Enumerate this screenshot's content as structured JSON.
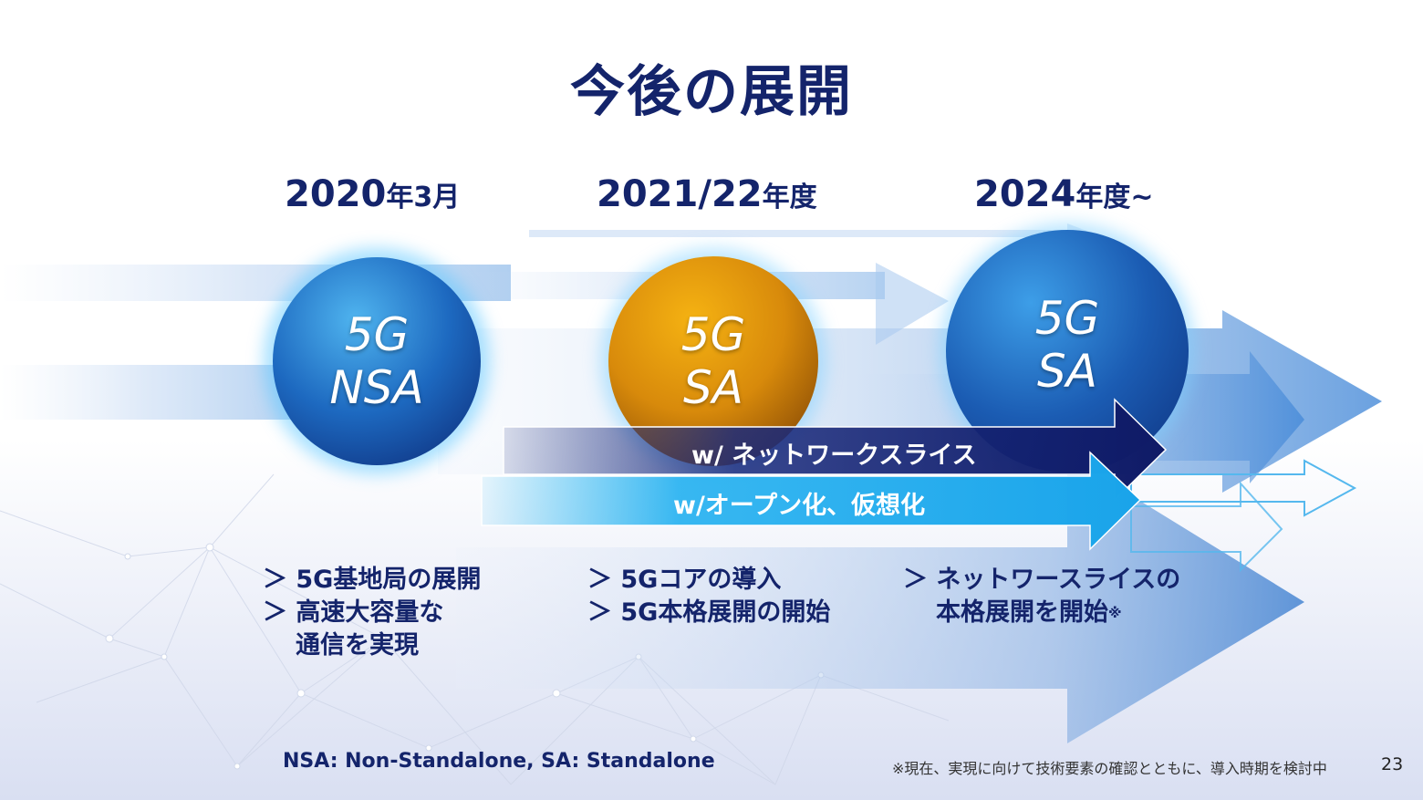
{
  "title": "今後の展開",
  "phases": [
    {
      "year": "2020",
      "suffix": "年3月"
    },
    {
      "year": "2021/22",
      "suffix": "年度"
    },
    {
      "year": "2024",
      "suffix": "年度~"
    }
  ],
  "circles": [
    {
      "line1": "5G",
      "line2": "NSA",
      "color": "#1f6fc4"
    },
    {
      "line1": "5G",
      "line2": "SA",
      "color": "#d98a10"
    },
    {
      "line1": "5G",
      "line2": "SA",
      "color": "#1a5fb4"
    }
  ],
  "arrows": {
    "slice": "w/ ネットワークスライス",
    "open": "w/オープン化、仮想化"
  },
  "bullets": {
    "col1": [
      "＞ 5G基地局の展開",
      "＞ 高速大容量な",
      "通信を実現"
    ],
    "col2": [
      "＞ 5Gコアの導入",
      "＞ 5G本格展開の開始"
    ],
    "col3": [
      "＞ ネットワースライスの",
      "本格展開を開始"
    ],
    "col3_mark": "※"
  },
  "footnotes": {
    "abbreviations": "NSA: Non-Standalone,  SA: Standalone",
    "note": "※現在、実現に向けて技術要素の確認とともに、導入時期を検討中",
    "page": "23"
  }
}
